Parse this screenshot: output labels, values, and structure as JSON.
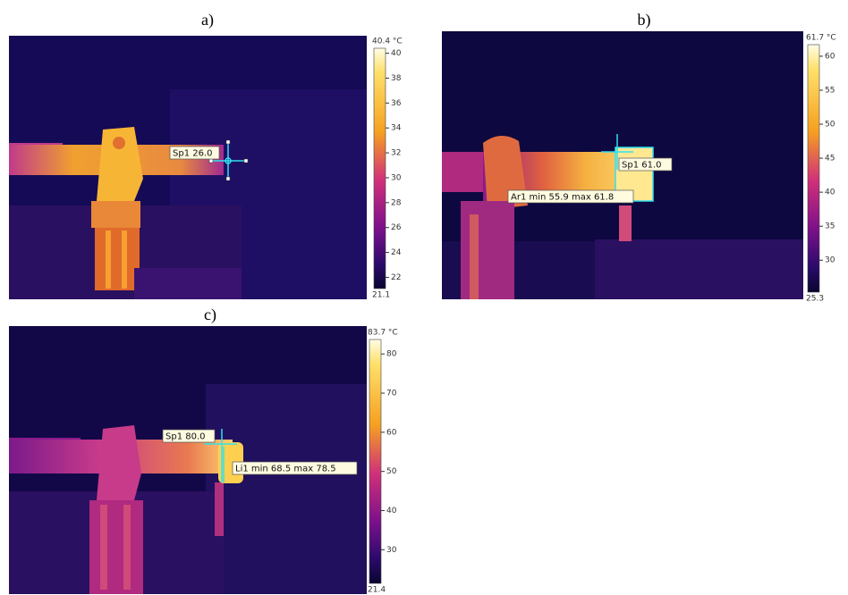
{
  "panels": [
    {
      "label": "a)",
      "annotations": [
        "Sp1 26.0"
      ],
      "scale": {
        "max": {
          "value": 40.4,
          "label": "40.4 °C"
        },
        "min": 21.1,
        "ticks": [
          40,
          38,
          36,
          34,
          32,
          30,
          28,
          26,
          24,
          22
        ]
      }
    },
    {
      "label": "b)",
      "annotations": [
        "Sp1 61.0",
        "Ar1 min 55.9 max 61.8"
      ],
      "scale": {
        "max": {
          "value": 61.7,
          "label": "61.7 °C"
        },
        "min": 25.3,
        "ticks": [
          60,
          55,
          50,
          45,
          40,
          35,
          30
        ]
      }
    },
    {
      "label": "c)",
      "annotations": [
        "Sp1 80.0",
        "Li1 min 68.5 max 78.5"
      ],
      "scale": {
        "max": {
          "value": 83.7,
          "label": "83.7 °C"
        },
        "min": 21.4,
        "ticks": [
          80,
          70,
          60,
          50,
          40,
          30
        ]
      }
    }
  ]
}
